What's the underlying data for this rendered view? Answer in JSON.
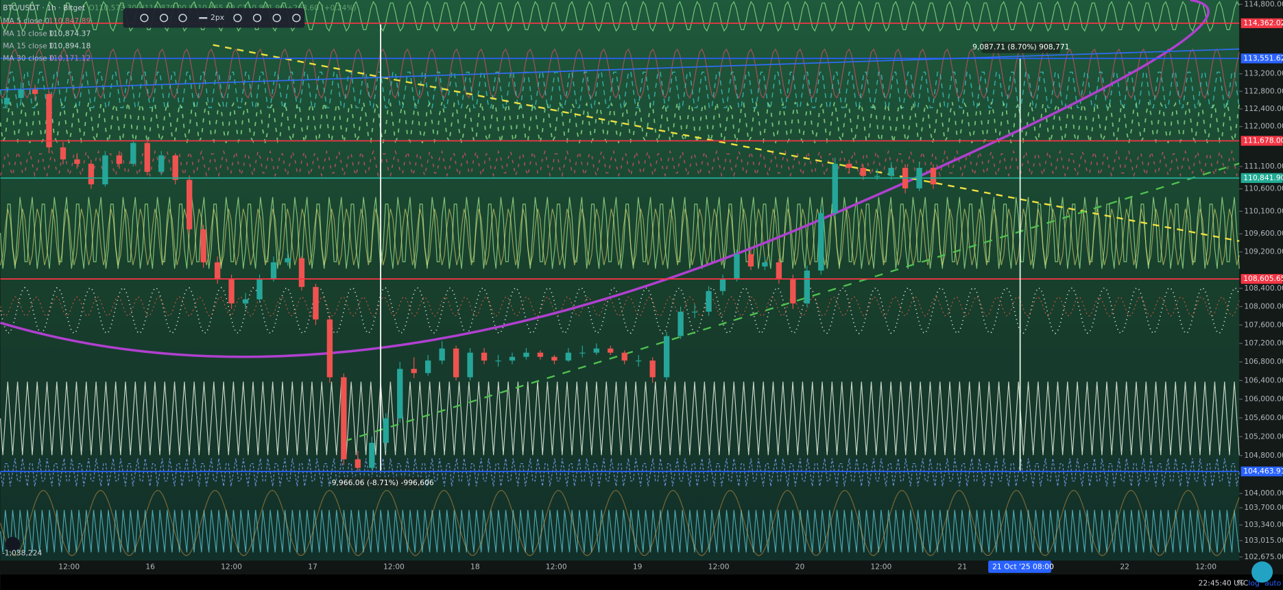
{
  "chart_data": {
    "type": "candlestick",
    "title": "BTC/USDT · 1h · Bitget",
    "ohlc_text": "O110,573.30 H110,870.00 L110,465.00 C110,841.90 +268.60 (+0.24%)",
    "moving_averages": [
      {
        "name": "MA 5 close 0",
        "value_label": "110,847.89",
        "color": "#e07080"
      },
      {
        "name": "MA 10 close 0",
        "value_label": "110,874.37",
        "color": "#cfd8dc"
      },
      {
        "name": "MA 15 close 0",
        "value_label": "110,894.18",
        "color": "#cfd8dc"
      },
      {
        "name": "MA 30 close 0",
        "value_label": "110,171.12",
        "color": "#c07ad0"
      }
    ],
    "toolbar_width": "2px",
    "log": true,
    "ylim": [
      102600,
      114900
    ],
    "yticks": [
      {
        "value": 114800,
        "label": "114,800.00"
      },
      {
        "value": 113200,
        "label": "113,200.00"
      },
      {
        "value": 112800,
        "label": "112,800.00"
      },
      {
        "value": 112400,
        "label": "112,400.00"
      },
      {
        "value": 112000,
        "label": "112,000.00"
      },
      {
        "value": 111100,
        "label": "111,100.00"
      },
      {
        "value": 110600,
        "label": "110,600.00"
      },
      {
        "value": 110100,
        "label": "110,100.00"
      },
      {
        "value": 109600,
        "label": "109,600.00"
      },
      {
        "value": 109200,
        "label": "109,200.00"
      },
      {
        "value": 108400,
        "label": "108,400.00"
      },
      {
        "value": 108000,
        "label": "108,000.00"
      },
      {
        "value": 107600,
        "label": "107,600.00"
      },
      {
        "value": 107200,
        "label": "107,200.00"
      },
      {
        "value": 106800,
        "label": "106,800.00"
      },
      {
        "value": 106400,
        "label": "106,400.00"
      },
      {
        "value": 106000,
        "label": "106,000.00"
      },
      {
        "value": 105600,
        "label": "105,600.00"
      },
      {
        "value": 105200,
        "label": "105,200.00"
      },
      {
        "value": 104800,
        "label": "104,800.00"
      },
      {
        "value": 104000,
        "label": "104,000.00"
      },
      {
        "value": 103700,
        "label": "103,700.00"
      },
      {
        "value": 103340,
        "label": "103,340.00"
      },
      {
        "value": 103015,
        "label": "103,015.00"
      },
      {
        "value": 102675,
        "label": "102,675.00"
      }
    ],
    "price_tags": [
      {
        "value": 114362.02,
        "label": "114,362.02",
        "color": "#f23645"
      },
      {
        "value": 113551.62,
        "label": "113,551.62",
        "color": "#2962ff"
      },
      {
        "value": 111678,
        "label": "111,678.00",
        "color": "#f23645"
      },
      {
        "value": 110841.9,
        "label": "110,841.90",
        "color": "#22ab94"
      },
      {
        "value": 108605.65,
        "label": "108,605.65",
        "color": "#f23645"
      },
      {
        "value": 104463.91,
        "label": "104,463.91",
        "color": "#2962ff"
      }
    ],
    "time_labels": [
      "12:00",
      "16",
      "12:00",
      "17",
      "12:00",
      "18",
      "12:00",
      "19",
      "12:00",
      "20",
      "12:00",
      "21",
      null,
      "22",
      "12:00"
    ],
    "crosshair_time": "21 Oct '25   08:00",
    "measure_up": "9,087.71 (8.70%) 908,771",
    "measure_down": "-9,966.06 (-8.71%) -996,606",
    "volume_label": "-1,038,224",
    "clock": "22:45:40 UTC",
    "scale_buttons": [
      "%",
      "log",
      "auto"
    ],
    "up_color": "#26a69a",
    "down_color": "#ef5350",
    "candles": [
      [
        112500,
        112900,
        112400,
        112650
      ],
      [
        112650,
        113000,
        112550,
        112840
      ],
      [
        112840,
        112950,
        112600,
        112740
      ],
      [
        112740,
        112800,
        111400,
        111530
      ],
      [
        111530,
        111650,
        111150,
        111260
      ],
      [
        111260,
        111400,
        111050,
        111160
      ],
      [
        111160,
        111250,
        110600,
        110700
      ],
      [
        110700,
        111450,
        110650,
        111350
      ],
      [
        111350,
        111450,
        111050,
        111160
      ],
      [
        111160,
        111700,
        111100,
        111630
      ],
      [
        111630,
        111700,
        110900,
        110980
      ],
      [
        110980,
        111450,
        110900,
        111350
      ],
      [
        111350,
        111400,
        110700,
        110800
      ],
      [
        110800,
        110900,
        109600,
        109700
      ],
      [
        109700,
        109800,
        108850,
        108970
      ],
      [
        108970,
        109100,
        108500,
        108610
      ],
      [
        108610,
        108700,
        107950,
        108070
      ],
      [
        108070,
        108300,
        107950,
        108160
      ],
      [
        108160,
        108700,
        108100,
        108610
      ],
      [
        108610,
        109100,
        108550,
        108970
      ],
      [
        108970,
        109200,
        108900,
        109060
      ],
      [
        109060,
        109100,
        108350,
        108430
      ],
      [
        108430,
        108500,
        107600,
        107720
      ],
      [
        107720,
        107800,
        106350,
        106470
      ],
      [
        106470,
        106550,
        104600,
        104720
      ],
      [
        104720,
        104900,
        104460,
        104540
      ],
      [
        104540,
        105200,
        104500,
        105070
      ],
      [
        105070,
        105700,
        104900,
        105590
      ],
      [
        105590,
        106800,
        105500,
        106650
      ],
      [
        106650,
        106900,
        106450,
        106560
      ],
      [
        106560,
        106950,
        106500,
        106830
      ],
      [
        106830,
        107250,
        106750,
        107090
      ],
      [
        107090,
        107150,
        106400,
        106470
      ],
      [
        106470,
        107100,
        106400,
        107000
      ],
      [
        107000,
        107100,
        106750,
        106830
      ],
      [
        106830,
        106950,
        106700,
        106830
      ],
      [
        106830,
        107000,
        106750,
        106910
      ],
      [
        106910,
        107100,
        106850,
        107000
      ],
      [
        107000,
        107050,
        106850,
        106910
      ],
      [
        106910,
        106950,
        106750,
        106830
      ],
      [
        106830,
        107100,
        106800,
        107000
      ],
      [
        107000,
        107150,
        106900,
        107000
      ],
      [
        107000,
        107200,
        106950,
        107090
      ],
      [
        107090,
        107150,
        106950,
        107000
      ],
      [
        107000,
        107050,
        106750,
        106830
      ],
      [
        106830,
        106950,
        106700,
        106830
      ],
      [
        106830,
        106900,
        106350,
        106470
      ],
      [
        106470,
        107450,
        106400,
        107360
      ],
      [
        107360,
        108000,
        107300,
        107890
      ],
      [
        107890,
        108050,
        107750,
        107890
      ],
      [
        107890,
        108450,
        107800,
        108340
      ],
      [
        108340,
        108700,
        108250,
        108610
      ],
      [
        108610,
        109250,
        108550,
        109150
      ],
      [
        109150,
        109250,
        108800,
        108880
      ],
      [
        108880,
        109100,
        108800,
        108970
      ],
      [
        108970,
        109050,
        108500,
        108610
      ],
      [
        108610,
        108700,
        107950,
        108070
      ],
      [
        108070,
        108900,
        108000,
        108790
      ],
      [
        108790,
        110200,
        108700,
        110060
      ],
      [
        110060,
        111300,
        110000,
        111160
      ],
      [
        111160,
        111250,
        110950,
        111070
      ],
      [
        111070,
        111150,
        110800,
        110890
      ],
      [
        110890,
        111050,
        110800,
        110890
      ],
      [
        110890,
        111200,
        110800,
        111070
      ],
      [
        111070,
        111150,
        110500,
        110610
      ],
      [
        110610,
        111200,
        110550,
        111070
      ],
      [
        111070,
        111150,
        110600,
        110700
      ]
    ]
  }
}
